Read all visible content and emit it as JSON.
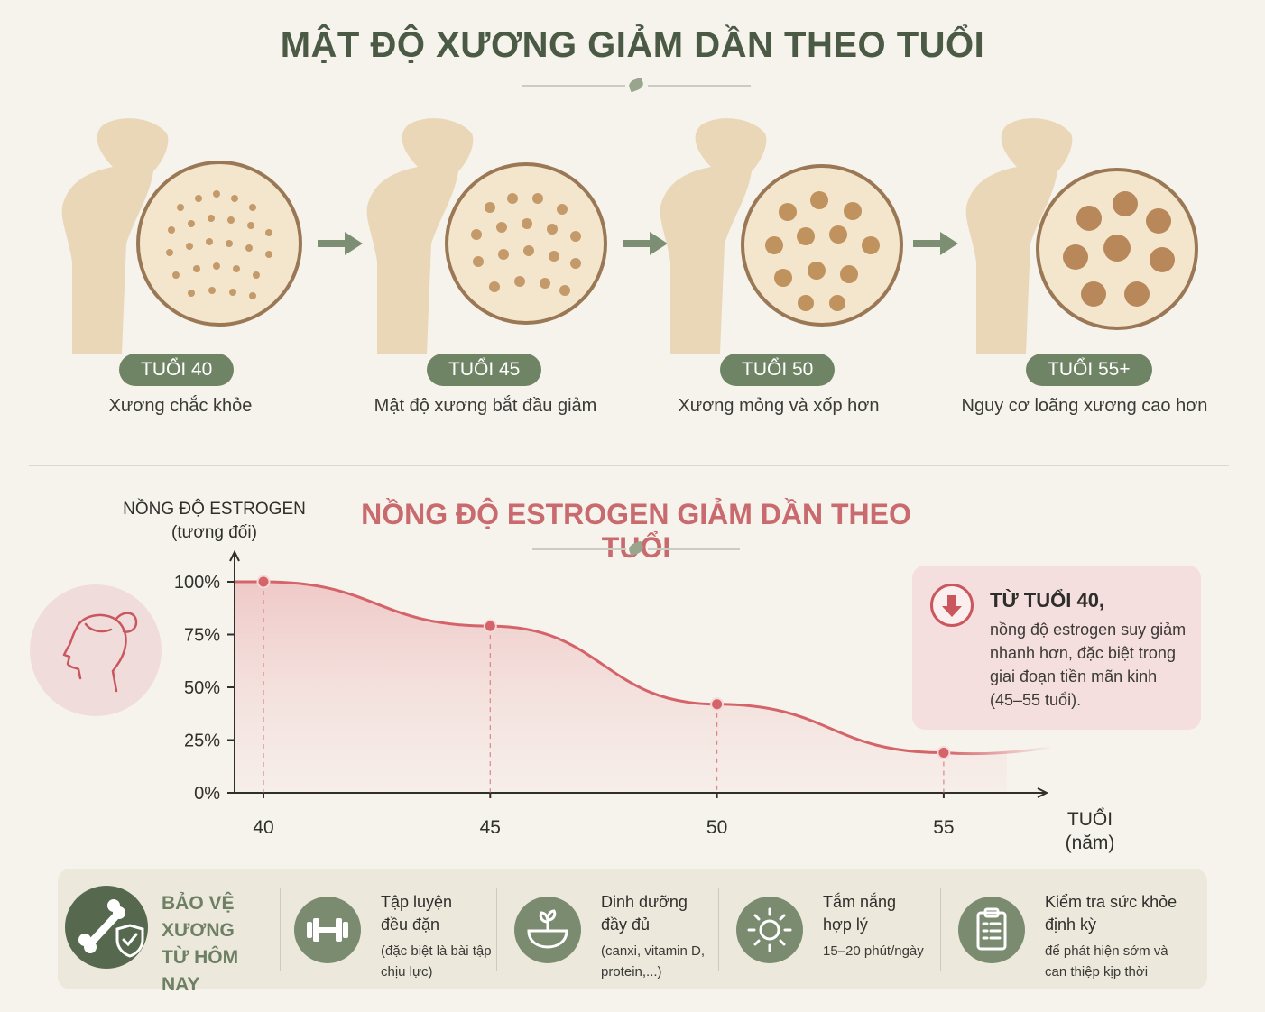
{
  "title": "MẬT ĐỘ XƯƠNG GIẢM DẦN THEO TUỔI",
  "stages": [
    {
      "age": "TUỔI 40",
      "desc": "Xương chắc khỏe"
    },
    {
      "age": "TUỔI 45",
      "desc": "Mật độ xương bắt đầu giảm"
    },
    {
      "age": "TUỔI 50",
      "desc": "Xương mỏng và xốp hơn"
    },
    {
      "age": "TUỔI 55+",
      "desc": "Nguy cơ loãng xương cao hơn"
    }
  ],
  "chart_data": {
    "type": "line",
    "title": "NỒNG ĐỘ ESTROGEN GIẢM DẦN THEO TUỔI",
    "ylabel": "NỒNG ĐỘ ESTROGEN",
    "ylabel_sub": "(tương đối)",
    "xlabel": "TUỔI",
    "xlabel_sub": "(năm)",
    "x": [
      40,
      45,
      50,
      55
    ],
    "y_ticks": [
      "0%",
      "25%",
      "50%",
      "75%",
      "100%"
    ],
    "x_ticks": [
      "40",
      "45",
      "50",
      "55"
    ],
    "ylim": [
      0,
      100
    ],
    "xlim": [
      39.5,
      57
    ],
    "series": [
      {
        "values": [
          100,
          79,
          42,
          19
        ]
      }
    ],
    "color": "#d4646a",
    "grid": false
  },
  "info": {
    "title": "TỪ TUỔI 40,",
    "body": "nồng độ estrogen suy giảm nhanh hơn, đặc biệt trong giai đoạn tiền mãn kinh (45–55 tuổi)."
  },
  "bottom": {
    "protect_title": "BẢO VỆ XƯƠNG TỪ HÔM NAY",
    "tips": [
      {
        "icon": "dumbbell-icon",
        "title": "Tập luyện đều đặn",
        "sub": "(đặc biệt là bài tập chịu lực)"
      },
      {
        "icon": "bowl-icon",
        "title": "Dinh dưỡng đầy đủ",
        "sub": "(canxi, vitamin D, protein,...)"
      },
      {
        "icon": "sun-icon",
        "title": "Tắm nắng hợp lý",
        "sub": "15–20 phút/ngày"
      },
      {
        "icon": "clipboard-icon",
        "title": "Kiểm tra sức khỏe định kỳ",
        "sub": "để phát hiện sớm và can thiệp kịp thời"
      }
    ]
  },
  "colors": {
    "accent_green": "#6f8465",
    "accent_red": "#d4646a",
    "background": "#f6f3ec"
  }
}
